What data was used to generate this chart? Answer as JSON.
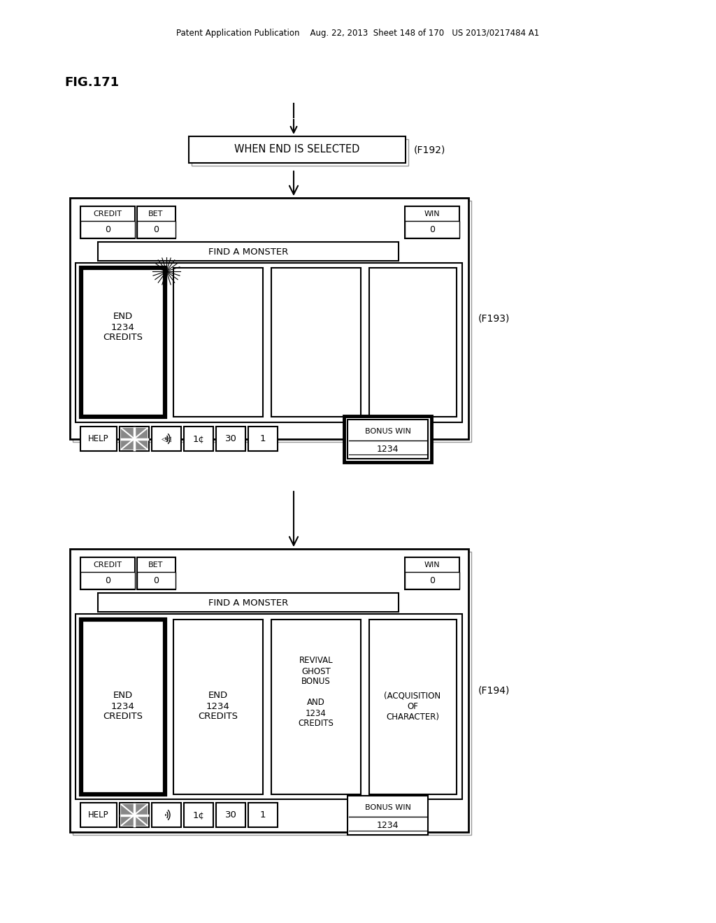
{
  "bg_color": "#ffffff",
  "header_text": "Patent Application Publication    Aug. 22, 2013  Sheet 148 of 170   US 2013/0217484 A1",
  "fig_label": "FIG.171",
  "top_box_text": "WHEN END IS SELECTED",
  "top_box_label": "(F192)",
  "frame1_label": "(F193)",
  "frame2_label": "(F194)"
}
